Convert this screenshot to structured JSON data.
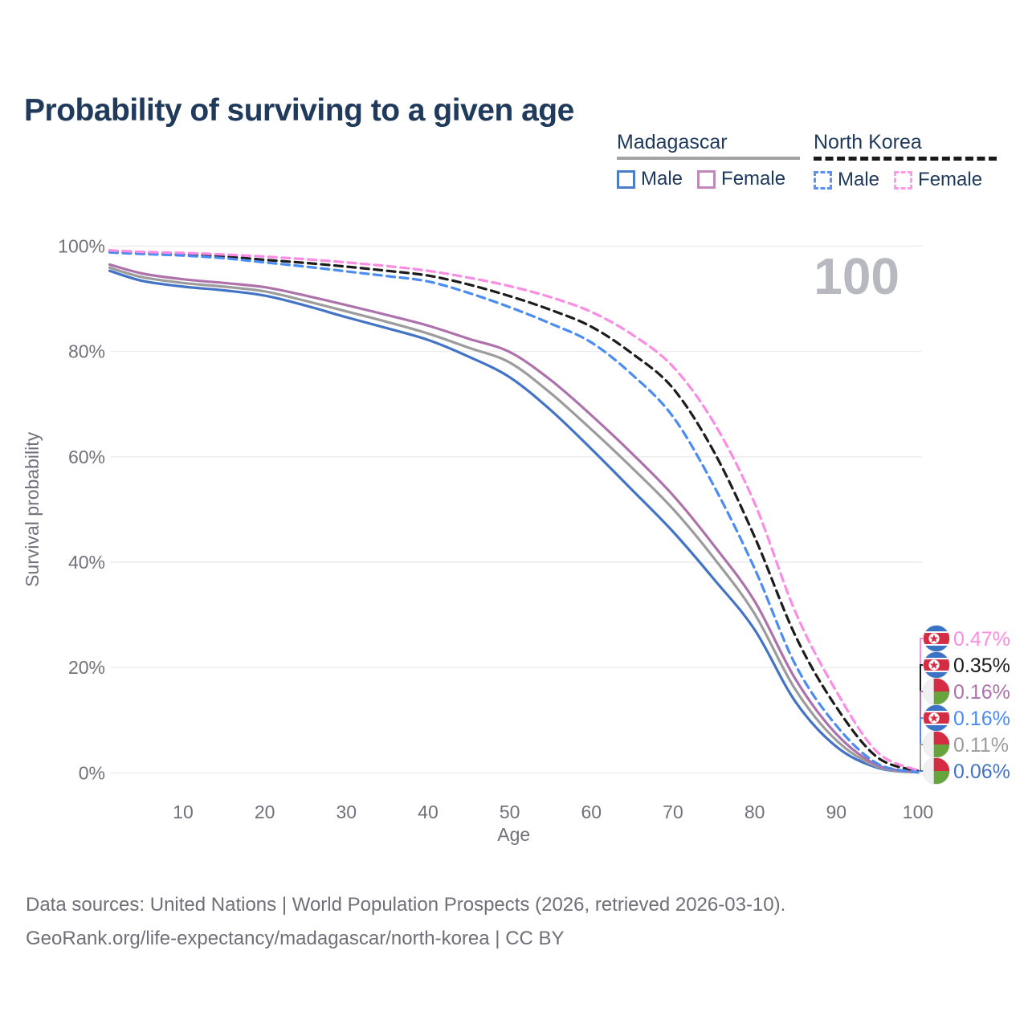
{
  "title": "Probability of surviving to a given age",
  "legend": {
    "groups": [
      {
        "name": "Madagascar",
        "line_style": "solid",
        "line_color": "#9c9c9c",
        "items": [
          {
            "label": "Male",
            "swatch_color": "#4a7dc2",
            "swatch_style": "solid"
          },
          {
            "label": "Female",
            "swatch_color": "#c288bb",
            "swatch_style": "solid"
          }
        ]
      },
      {
        "name": "North Korea",
        "line_style": "dashed",
        "line_color": "#1a1a1a",
        "items": [
          {
            "label": "Male",
            "swatch_color": "#5a91f2",
            "swatch_style": "dashed"
          },
          {
            "label": "Female",
            "swatch_color": "#fc9ce8",
            "swatch_style": "dashed"
          }
        ]
      }
    ]
  },
  "watermark": "100",
  "y_axis": {
    "label": "Survival probability",
    "ticks": [
      {
        "label": "100%",
        "pct": 100
      },
      {
        "label": "80%",
        "pct": 80
      },
      {
        "label": "60%",
        "pct": 60
      },
      {
        "label": "40%",
        "pct": 40
      },
      {
        "label": "20%",
        "pct": 20
      },
      {
        "label": "0%",
        "pct": 0
      }
    ]
  },
  "x_axis": {
    "label": "Age",
    "ticks": [
      10,
      20,
      30,
      40,
      50,
      60,
      70,
      80,
      90,
      100
    ]
  },
  "end_labels": [
    {
      "value": "0.47%",
      "flag": "north-korea",
      "color": "#fb8ce3"
    },
    {
      "value": "0.35%",
      "flag": "north-korea",
      "color": "#1c1c1c"
    },
    {
      "value": "0.16%",
      "flag": "madagascar",
      "color": "#ad72ab"
    },
    {
      "value": "0.16%",
      "flag": "north-korea",
      "color": "#4b8cf2"
    },
    {
      "value": "0.11%",
      "flag": "madagascar",
      "color": "#9c9c9c"
    },
    {
      "value": "0.06%",
      "flag": "madagascar",
      "color": "#4273c5"
    }
  ],
  "footer": {
    "line1": "Data sources: United Nations | World Population Prospects (2026, retrieved 2026-03-10).",
    "line2": "GeoRank.org/life-expectancy/madagascar/north-korea | CC BY"
  },
  "colors": {
    "title": "#203a5c",
    "axis_text": "#71717b",
    "gridline": "#ececef",
    "watermark": "#b8b9c0",
    "footer_text": "#6f6f78"
  },
  "chart_data": {
    "type": "line",
    "title": "Probability of surviving to a given age",
    "xlabel": "Age",
    "ylabel": "Survival probability",
    "x_range": [
      1,
      100
    ],
    "y_range_pct": [
      0,
      100
    ],
    "grid": "horizontal-only",
    "legend_position": "top-right",
    "ages": [
      1,
      5,
      10,
      15,
      20,
      25,
      30,
      35,
      40,
      45,
      50,
      55,
      60,
      65,
      70,
      75,
      80,
      85,
      90,
      95,
      100
    ],
    "series": [
      {
        "name": "Madagascar Male",
        "country": "Madagascar",
        "group": "Male",
        "style": "solid",
        "color": "#4273c5",
        "end_label": "0.06%",
        "values_pct": [
          95.3,
          93.4,
          92.3,
          91.6,
          90.6,
          88.7,
          86.5,
          84.4,
          82.2,
          79.0,
          75.1,
          68.9,
          61.5,
          53.7,
          45.8,
          36.8,
          27.2,
          13.5,
          5.0,
          1.0,
          0.06
        ]
      },
      {
        "name": "Madagascar",
        "country": "Madagascar",
        "group": "All",
        "style": "solid",
        "color": "#9c9c9c",
        "end_label": "0.11%",
        "values_pct": [
          95.9,
          94.1,
          93.0,
          92.3,
          91.4,
          89.6,
          87.6,
          85.6,
          83.4,
          80.7,
          77.9,
          72.1,
          65.2,
          57.9,
          50.1,
          40.8,
          30.2,
          15.8,
          6.2,
          1.2,
          0.11
        ]
      },
      {
        "name": "Madagascar Female",
        "country": "Madagascar",
        "group": "Female",
        "style": "solid",
        "color": "#ad72ab",
        "end_label": "0.16%",
        "values_pct": [
          96.5,
          94.8,
          93.7,
          93.0,
          92.2,
          90.6,
          88.8,
          86.9,
          84.9,
          82.4,
          79.9,
          74.6,
          67.9,
          60.6,
          52.7,
          43.2,
          32.6,
          17.8,
          7.4,
          1.5,
          0.16
        ]
      },
      {
        "name": "North Korea",
        "country": "North Korea",
        "group": "All",
        "style": "dashed",
        "color": "#1c1c1c",
        "end_label": "0.35%",
        "values_pct": [
          99.0,
          98.7,
          98.4,
          98.0,
          97.4,
          96.8,
          96.1,
          95.3,
          94.4,
          92.7,
          90.5,
          87.9,
          84.7,
          79.6,
          73.0,
          61.0,
          44.8,
          26.0,
          12.5,
          3.0,
          0.35
        ]
      },
      {
        "name": "North Korea Male",
        "country": "North Korea",
        "group": "Male",
        "style": "dashed",
        "color": "#4b8cf2",
        "end_label": "0.16%",
        "values_pct": [
          98.8,
          98.5,
          98.2,
          97.7,
          96.9,
          96.1,
          95.2,
          94.3,
          93.3,
          91.1,
          88.4,
          85.3,
          81.7,
          75.6,
          67.6,
          54.5,
          38.8,
          20.5,
          9.0,
          1.8,
          0.16
        ]
      },
      {
        "name": "North Korea Female",
        "country": "North Korea",
        "group": "Female",
        "style": "dashed",
        "color": "#fb8ce3",
        "end_label": "0.47%",
        "values_pct": [
          99.2,
          98.9,
          98.7,
          98.4,
          98.0,
          97.5,
          96.9,
          96.2,
          95.3,
          94.0,
          92.4,
          90.3,
          87.5,
          83.2,
          77.1,
          66.5,
          51.2,
          30.5,
          15.5,
          4.0,
          0.47
        ]
      }
    ]
  }
}
